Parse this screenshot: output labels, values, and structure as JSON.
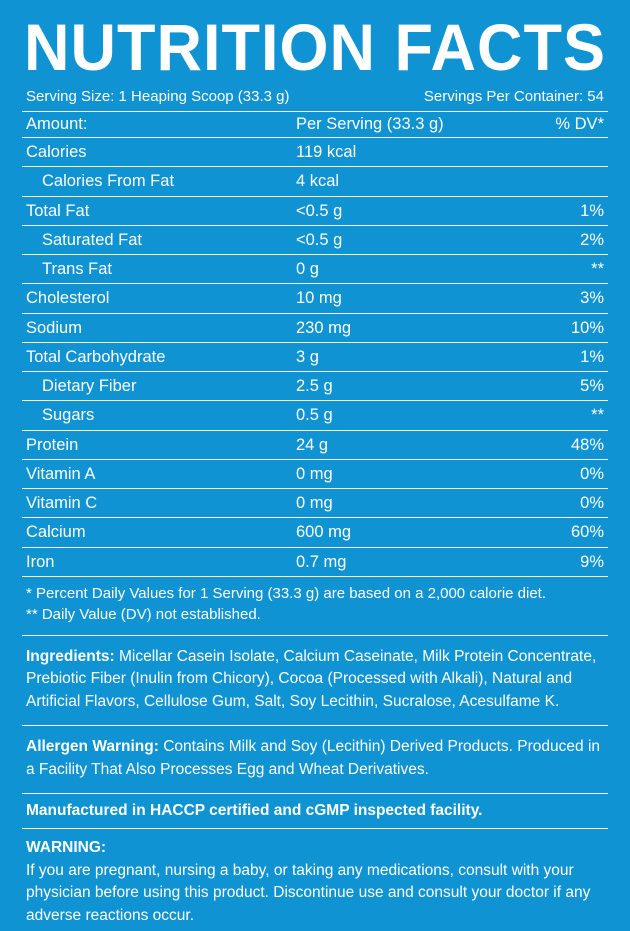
{
  "title": "NUTRITION FACTS",
  "serving_size_label": "Serving Size: 1 Heaping Scoop (33.3 g)",
  "servings_per_container": "Servings Per Container: 54",
  "header": {
    "amount": "Amount:",
    "per_serving": "Per Serving (33.3 g)",
    "dv": "% DV*"
  },
  "rows": [
    {
      "name": "Calories",
      "value": "119 kcal",
      "dv": "",
      "indent": false
    },
    {
      "name": "Calories From Fat",
      "value": "4 kcal",
      "dv": "",
      "indent": true
    },
    {
      "name": "Total Fat",
      "value": "<0.5 g",
      "dv": "1%",
      "indent": false
    },
    {
      "name": "Saturated Fat",
      "value": "<0.5 g",
      "dv": "2%",
      "indent": true
    },
    {
      "name": "Trans Fat",
      "value": "0 g",
      "dv": "**",
      "indent": true
    },
    {
      "name": "Cholesterol",
      "value": "10 mg",
      "dv": "3%",
      "indent": false
    },
    {
      "name": "Sodium",
      "value": "230 mg",
      "dv": "10%",
      "indent": false
    },
    {
      "name": "Total Carbohydrate",
      "value": "3 g",
      "dv": "1%",
      "indent": false
    },
    {
      "name": "Dietary Fiber",
      "value": "2.5 g",
      "dv": "5%",
      "indent": true
    },
    {
      "name": "Sugars",
      "value": "0.5 g",
      "dv": "**",
      "indent": true
    },
    {
      "name": "Protein",
      "value": "24 g",
      "dv": "48%",
      "indent": false
    },
    {
      "name": "Vitamin A",
      "value": "0 mg",
      "dv": "0%",
      "indent": false
    },
    {
      "name": "Vitamin C",
      "value": "0 mg",
      "dv": "0%",
      "indent": false
    },
    {
      "name": "Calcium",
      "value": "600 mg",
      "dv": "60%",
      "indent": false
    },
    {
      "name": "Iron",
      "value": "0.7 mg",
      "dv": "9%",
      "indent": false
    }
  ],
  "footnote1": "* Percent Daily Values for 1 Serving (33.3 g) are based on a 2,000 calorie diet.",
  "footnote2": "** Daily Value (DV) not established.",
  "ingredients_label": "Ingredients:",
  "ingredients_text": " Micellar Casein Isolate, Calcium Caseinate, Milk Protein Concentrate, Prebiotic Fiber (Inulin from Chicory), Cocoa (Processed with Alkali), Natural and Artificial Flavors, Cellulose Gum, Salt, Soy Lecithin, Sucralose, Acesulfame K.",
  "allergen_label": "Allergen Warning:",
  "allergen_text": " Contains Milk and Soy (Lecithin) Derived Products. Produced in a Facility That Also Processes Egg and Wheat Derivatives.",
  "mfg_text": "Manufactured in HACCP certified and cGMP inspected facility.",
  "warning_label": "WARNING:",
  "warning_text": "If you are pregnant, nursing a baby, or taking any medications, consult with your physician before using this product. Discontinue use and consult your doctor if any adverse reactions occur."
}
